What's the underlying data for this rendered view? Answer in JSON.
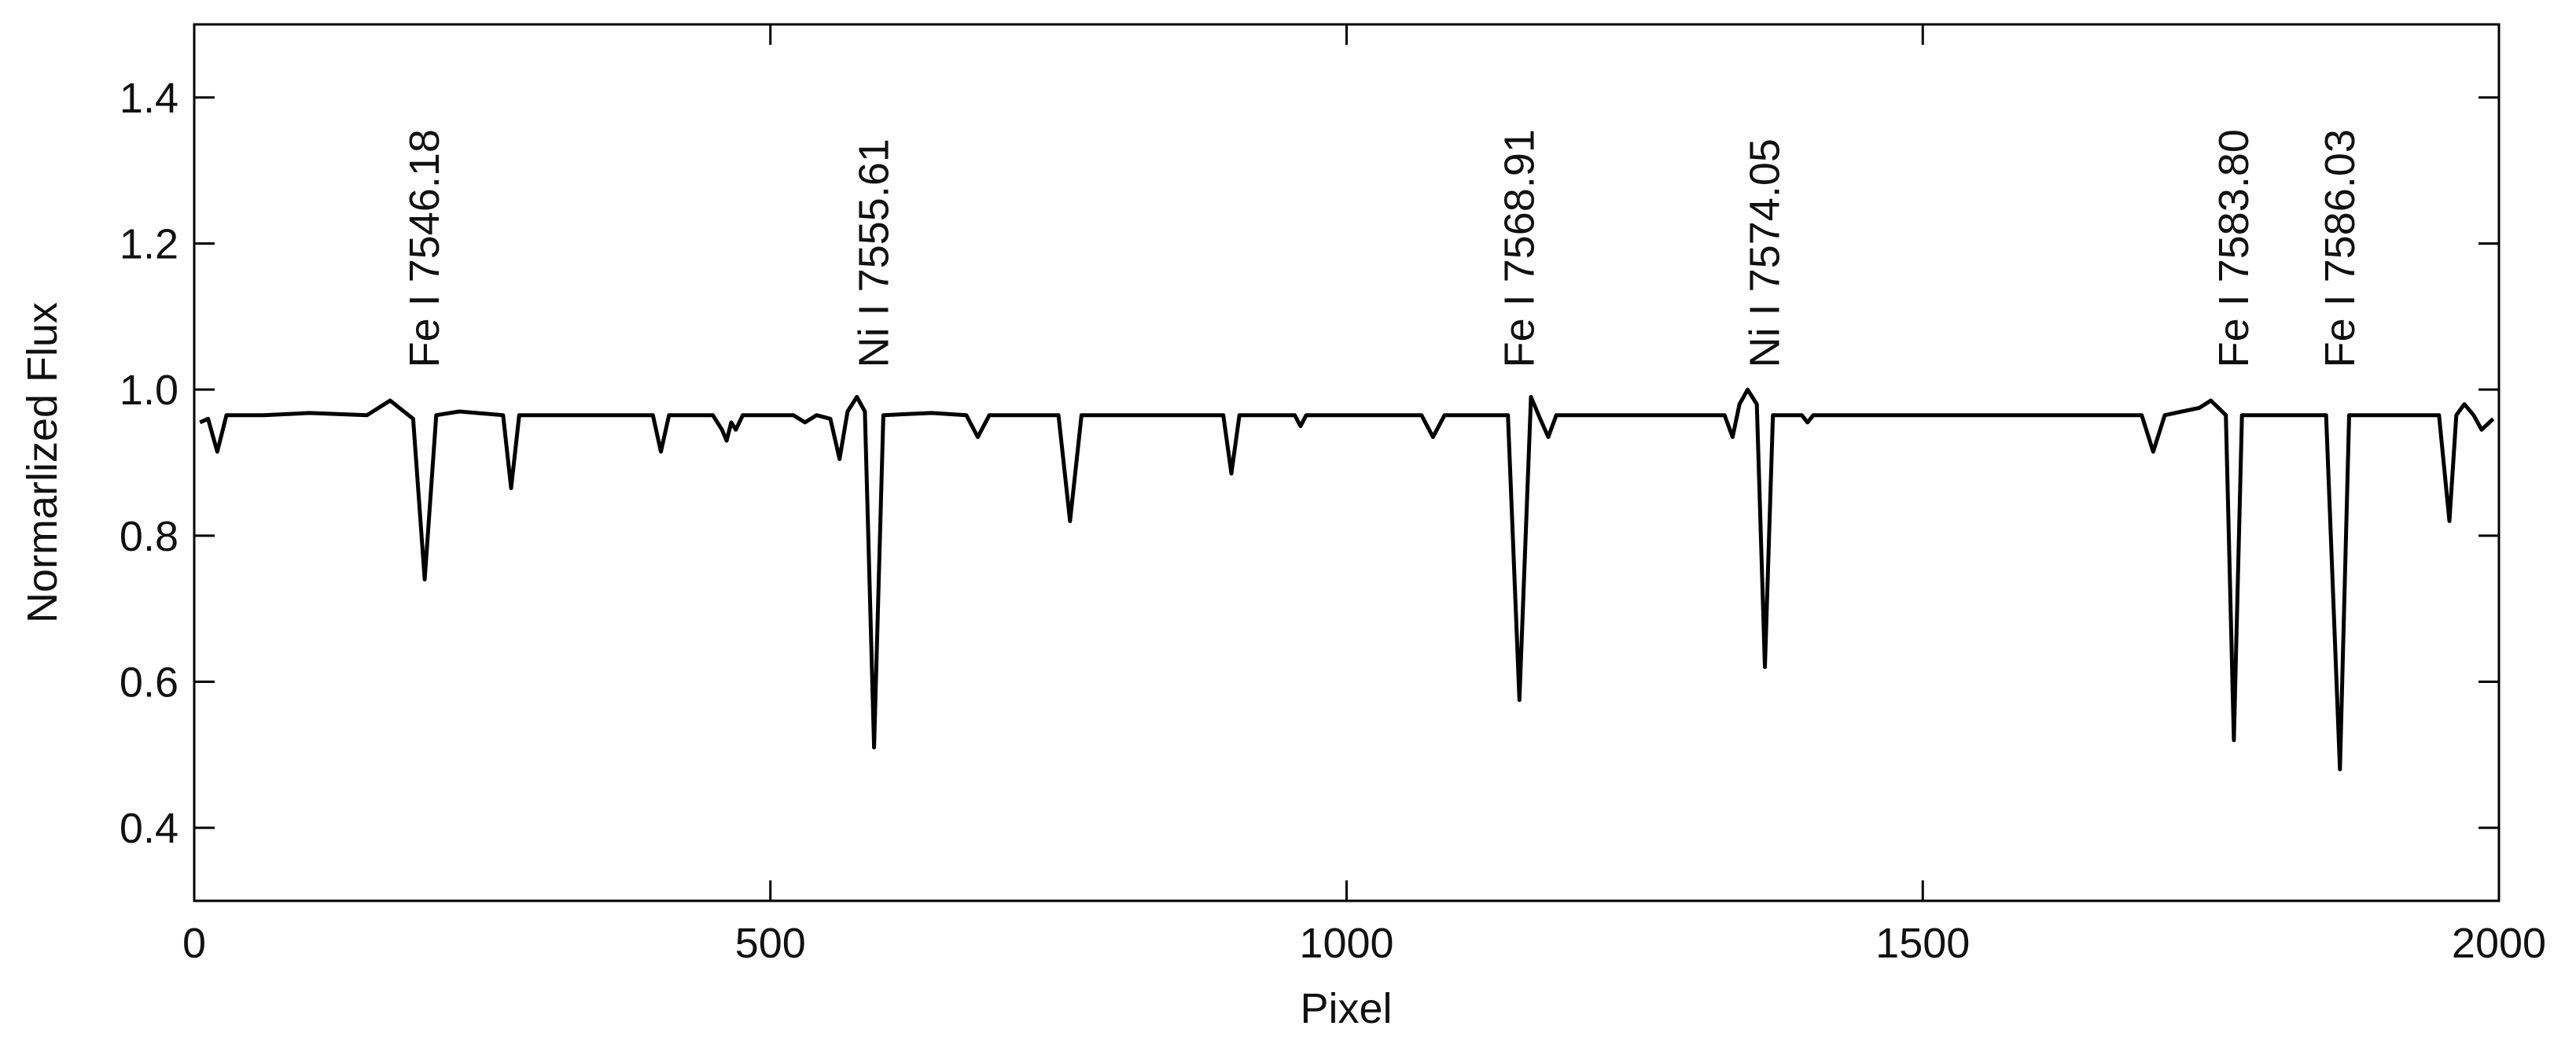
{
  "chart_data": {
    "type": "line",
    "xlabel": "Pixel",
    "ylabel": "Normarlized Flux",
    "color": "#000000",
    "xlim": [
      0,
      2000
    ],
    "xticks": [
      0,
      500,
      1000,
      1500,
      2000
    ],
    "ylim": [
      0.3,
      1.5
    ],
    "yticks": [
      0.4,
      0.6,
      0.8,
      {
        "value": 1,
        "label": "1.0"
      },
      1.2,
      1.4
    ],
    "annotations": [
      {
        "text": "Fe I 7546.18",
        "x": 200
      },
      {
        "text": "Ni I 7555.61",
        "x": 590
      },
      {
        "text": "Fe I 7568.91",
        "x": 1150
      },
      {
        "text": "Ni I 7574.05",
        "x": 1363
      },
      {
        "text": "Fe I 7583.80",
        "x": 1770
      },
      {
        "text": "Fe I 7586.03",
        "x": 1862
      }
    ],
    "x": [
      5,
      12,
      20,
      28,
      60,
      100,
      150,
      170,
      190,
      200,
      210,
      230,
      268,
      275,
      282,
      320,
      398,
      405,
      412,
      450,
      458,
      462,
      466,
      470,
      476,
      520,
      530,
      540,
      552,
      560,
      567,
      575,
      582,
      590,
      598,
      640,
      670,
      680,
      690,
      750,
      760,
      770,
      893,
      900,
      907,
      955,
      960,
      965,
      1065,
      1075,
      1085,
      1140,
      1150,
      1160,
      1168,
      1175,
      1182,
      1300,
      1328,
      1335,
      1341,
      1348,
      1356,
      1363,
      1370,
      1395,
      1400,
      1405,
      1690,
      1700,
      1710,
      1740,
      1750,
      1763,
      1770,
      1777,
      1850,
      1862,
      1870,
      1948,
      1957,
      1963,
      1970,
      1978,
      1985,
      1995
    ],
    "values": [
      0.955,
      0.96,
      0.915,
      0.965,
      0.965,
      0.968,
      0.965,
      0.985,
      0.96,
      0.74,
      0.965,
      0.97,
      0.965,
      0.865,
      0.965,
      0.965,
      0.965,
      0.915,
      0.965,
      0.965,
      0.945,
      0.93,
      0.955,
      0.945,
      0.965,
      0.965,
      0.955,
      0.965,
      0.96,
      0.905,
      0.97,
      0.99,
      0.97,
      0.51,
      0.965,
      0.968,
      0.965,
      0.935,
      0.965,
      0.965,
      0.82,
      0.965,
      0.965,
      0.885,
      0.965,
      0.965,
      0.95,
      0.965,
      0.965,
      0.935,
      0.965,
      0.965,
      0.575,
      0.99,
      0.96,
      0.935,
      0.965,
      0.965,
      0.965,
      0.935,
      0.98,
      1.0,
      0.98,
      0.62,
      0.965,
      0.965,
      0.955,
      0.965,
      0.965,
      0.915,
      0.965,
      0.975,
      0.985,
      0.965,
      0.52,
      0.965,
      0.965,
      0.48,
      0.965,
      0.965,
      0.82,
      0.965,
      0.98,
      0.965,
      0.945,
      0.96
    ]
  }
}
